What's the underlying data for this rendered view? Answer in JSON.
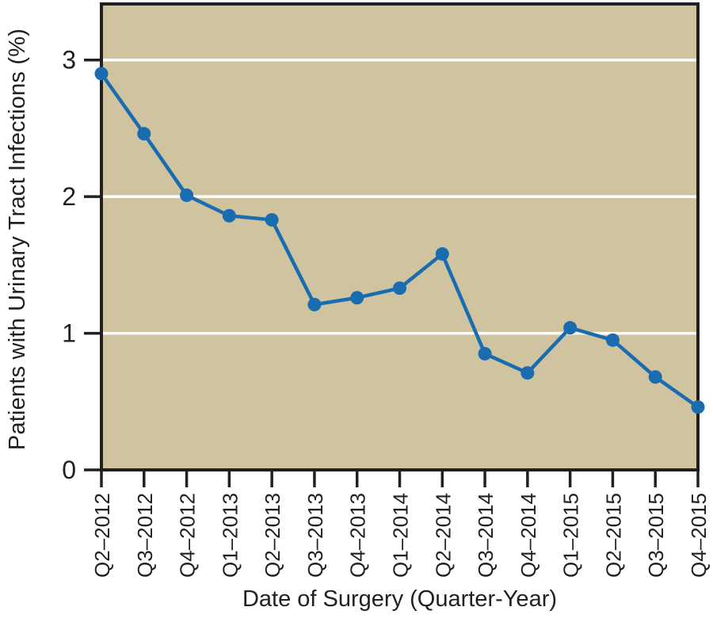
{
  "chart_data": {
    "type": "line",
    "title": "",
    "xlabel": "Date of Surgery (Quarter-Year)",
    "ylabel": "Patients with Urinary Tract Infections (%)",
    "categories": [
      "Q2–2012",
      "Q3–2012",
      "Q4–2012",
      "Q1–2013",
      "Q2–2013",
      "Q3–2013",
      "Q4–2013",
      "Q1–2014",
      "Q2–2014",
      "Q3–2014",
      "Q4–2014",
      "Q1–2015",
      "Q2–2015",
      "Q3–2015",
      "Q4–2015"
    ],
    "values": [
      2.9,
      2.46,
      2.01,
      1.86,
      1.83,
      1.21,
      1.26,
      1.33,
      1.58,
      0.85,
      0.71,
      1.04,
      0.95,
      0.68,
      0.46
    ],
    "yticks": [
      0,
      1,
      2,
      3
    ],
    "ylim": [
      0,
      3.41
    ],
    "grid": "horizontal white gridlines at y = 1, 2, 3",
    "legend_position": "none",
    "marker": "circle",
    "colors": {
      "series": "#1a6cb0",
      "plot_background": "#d0c39f",
      "gridline": "#ffffff",
      "axis": "#231f20",
      "page_background": "#ffffff"
    }
  }
}
